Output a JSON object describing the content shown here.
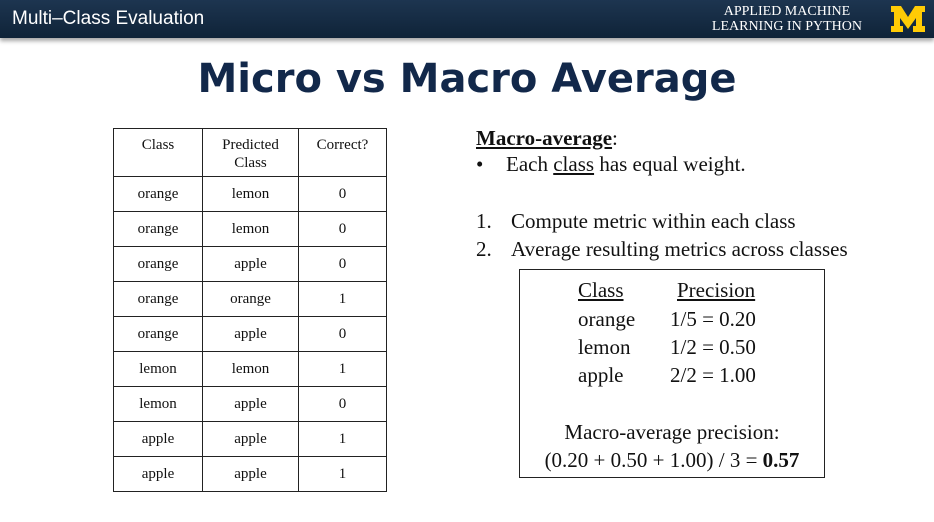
{
  "header": {
    "title": "Multi–Class Evaluation",
    "brand_line1": "APPLIED MACHINE",
    "brand_line2": "LEARNING IN PYTHON",
    "logo_icon": "block-m-logo-icon",
    "logo_color": "#FFCB05"
  },
  "slide": {
    "title": "Micro vs Macro Average"
  },
  "table": {
    "headers": [
      "Class",
      "Predicted Class",
      "Correct?"
    ],
    "rows": [
      [
        "orange",
        "lemon",
        "0"
      ],
      [
        "orange",
        "lemon",
        "0"
      ],
      [
        "orange",
        "apple",
        "0"
      ],
      [
        "orange",
        "orange",
        "1"
      ],
      [
        "orange",
        "apple",
        "0"
      ],
      [
        "lemon",
        "lemon",
        "1"
      ],
      [
        "lemon",
        "apple",
        "0"
      ],
      [
        "apple",
        "apple",
        "1"
      ],
      [
        "apple",
        "apple",
        "1"
      ]
    ]
  },
  "macro": {
    "heading": "Macro-average",
    "heading_suffix": ":",
    "bullet": "•",
    "bullet_pre": "Each ",
    "bullet_u": "class",
    "bullet_post": " has equal weight.",
    "steps": [
      {
        "num": "1.",
        "text": "Compute metric within each class"
      },
      {
        "num": "2.",
        "text": "Average resulting metrics across classes"
      }
    ]
  },
  "box": {
    "col_class": "Class",
    "col_precision": "Precision",
    "rows": [
      {
        "cls": "orange",
        "prec": "1/5 = 0.20"
      },
      {
        "cls": "lemon",
        "prec": "1/2 = 0.50"
      },
      {
        "cls": "apple",
        "prec": "2/2 = 1.00"
      }
    ],
    "summary_label": "Macro-average precision:",
    "formula": "(0.20 + 0.50 + 1.00) / 3 = ",
    "result": "0.57"
  }
}
